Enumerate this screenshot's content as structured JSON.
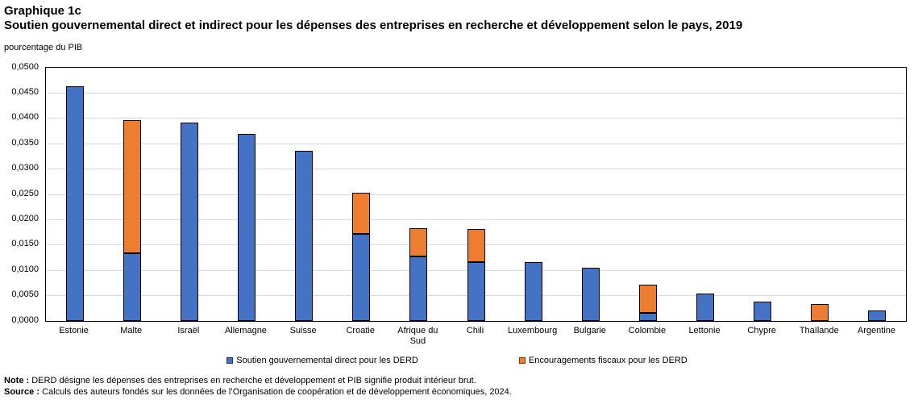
{
  "header": {
    "kicker": "Graphique 1c",
    "title": "Soutien gouvernemental direct et indirect pour les dépenses des entreprises en recherche et développement selon le pays, 2019",
    "unit_label": "pourcentage du PIB"
  },
  "chart_data": {
    "type": "bar",
    "stacked": true,
    "title": "Soutien gouvernemental direct et indirect pour les dépenses des entreprises en recherche et développement selon le pays, 2019",
    "ylabel": "pourcentage du PIB",
    "xlabel": "",
    "ylim": [
      0,
      0.05
    ],
    "ytick_step": 0.005,
    "ytick_labels": [
      "0,0500",
      "0,0450",
      "0,0400",
      "0,0350",
      "0,0300",
      "0,0250",
      "0,0200",
      "0,0150",
      "0,0100",
      "0,0050",
      "0,0000"
    ],
    "grid": true,
    "legend_position": "bottom",
    "categories": [
      "Estonie",
      "Malte",
      "Israël",
      "Allemagne",
      "Suisse",
      "Croatie",
      "Afrique du Sud",
      "Chili",
      "Luxembourg",
      "Bulgarie",
      "Colombie",
      "Lettonie",
      "Chypre",
      "Thaïlande",
      "Argentine"
    ],
    "series": [
      {
        "name": "Soutien gouvernemental direct pour les DERD",
        "color": "#4472C4",
        "values": [
          0.0464,
          0.0134,
          0.0392,
          0.037,
          0.0336,
          0.0172,
          0.0127,
          0.0116,
          0.0116,
          0.0105,
          0.0016,
          0.0054,
          0.0038,
          0.0,
          0.0021
        ]
      },
      {
        "name": "Encouragements fiscaux pour les DERD",
        "color": "#ED7D31",
        "values": [
          0.0,
          0.0262,
          0.0,
          0.0,
          0.0,
          0.0081,
          0.0056,
          0.0065,
          0.0,
          0.0,
          0.0056,
          0.0,
          0.0,
          0.0034,
          0.0
        ]
      }
    ],
    "colors": {
      "bar_border": "#000000",
      "gridline": "#d9d9d9",
      "plot_border": "#000000"
    }
  },
  "footer": {
    "note_label": "Note :",
    "note_text": " DERD désigne les dépenses des entreprises en recherche et développement et PIB signifie produit intérieur brut.",
    "source_label": "Source :",
    "source_text": " Calculs des auteurs fondés sur les données de l’Organisation de coopération et de développement économiques, 2024."
  }
}
